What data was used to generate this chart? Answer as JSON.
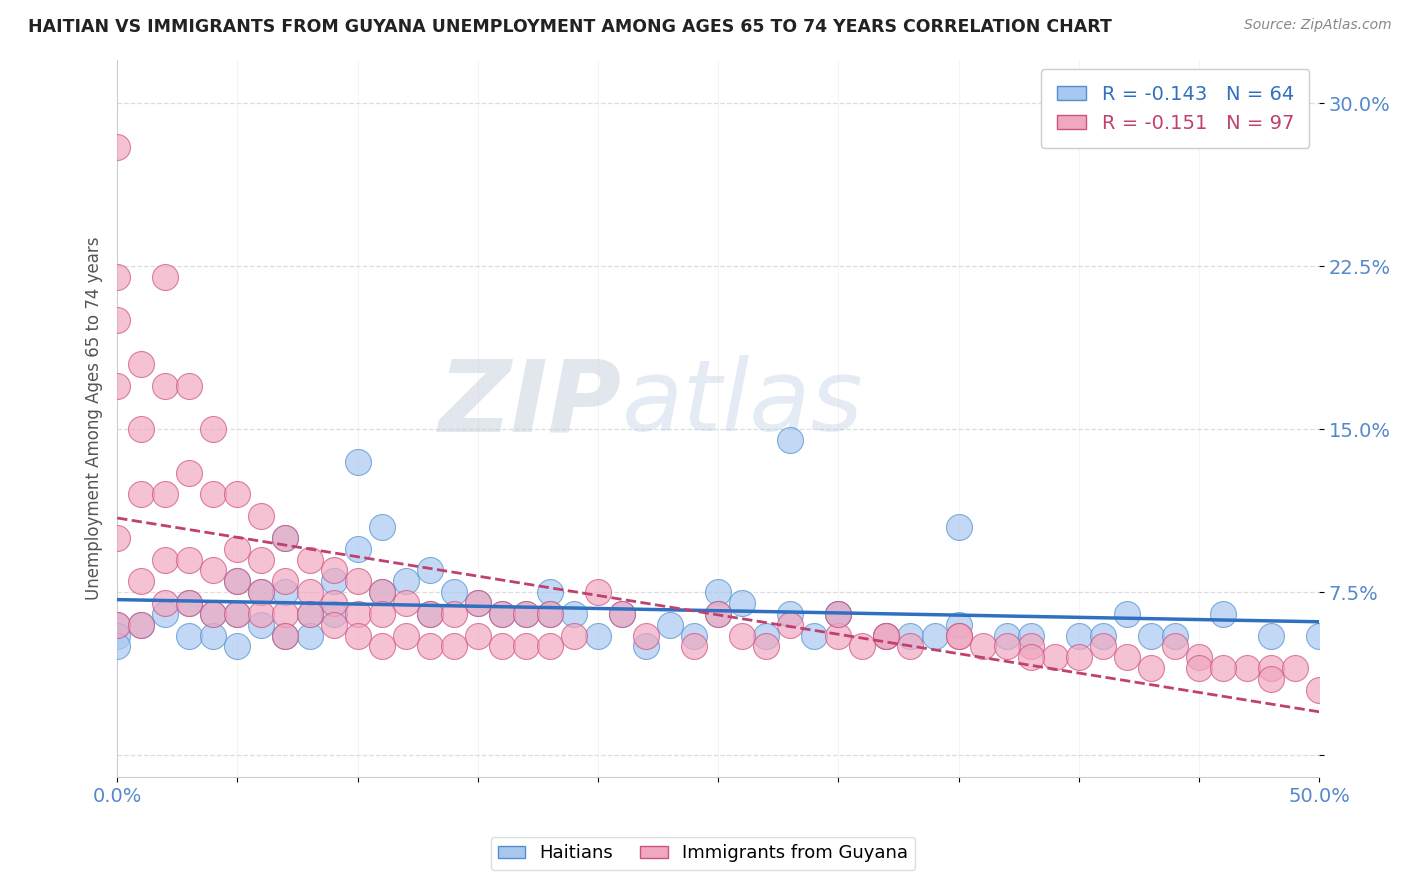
{
  "title": "HAITIAN VS IMMIGRANTS FROM GUYANA UNEMPLOYMENT AMONG AGES 65 TO 74 YEARS CORRELATION CHART",
  "source": "Source: ZipAtlas.com",
  "ylabel": "Unemployment Among Ages 65 to 74 years",
  "xlim": [
    0,
    0.5
  ],
  "ylim": [
    -0.01,
    0.32
  ],
  "yticks": [
    0.0,
    0.075,
    0.15,
    0.225,
    0.3
  ],
  "ytick_labels": [
    "",
    "7.5%",
    "15.0%",
    "22.5%",
    "30.0%"
  ],
  "xtick_labels_show": [
    "0.0%",
    "50.0%"
  ],
  "blue_R": -0.143,
  "blue_N": 64,
  "pink_R": -0.151,
  "pink_N": 97,
  "blue_color": "#A8C8F0",
  "pink_color": "#F0A8C0",
  "blue_edge_color": "#5090D0",
  "pink_edge_color": "#D05080",
  "blue_line_color": "#3070C0",
  "pink_line_color": "#C04070",
  "legend_label_blue": "Haitians",
  "legend_label_pink": "Immigrants from Guyana",
  "watermark_zip": "ZIP",
  "watermark_atlas": "atlas",
  "background_color": "#FFFFFF",
  "grid_color": "#DDDDDD",
  "axis_label_color": "#5588CC",
  "title_color": "#222222",
  "blue_scatter_x": [
    0.0,
    0.0,
    0.0,
    0.01,
    0.02,
    0.03,
    0.03,
    0.04,
    0.04,
    0.05,
    0.05,
    0.05,
    0.06,
    0.06,
    0.07,
    0.07,
    0.07,
    0.08,
    0.08,
    0.09,
    0.09,
    0.1,
    0.1,
    0.11,
    0.11,
    0.12,
    0.13,
    0.13,
    0.14,
    0.15,
    0.16,
    0.17,
    0.18,
    0.18,
    0.19,
    0.2,
    0.21,
    0.22,
    0.23,
    0.24,
    0.25,
    0.25,
    0.26,
    0.27,
    0.28,
    0.29,
    0.3,
    0.32,
    0.33,
    0.34,
    0.35,
    0.37,
    0.38,
    0.4,
    0.41,
    0.43,
    0.44,
    0.46,
    0.48,
    0.5,
    0.28,
    0.3,
    0.35,
    0.42
  ],
  "blue_scatter_y": [
    0.06,
    0.055,
    0.05,
    0.06,
    0.065,
    0.07,
    0.055,
    0.065,
    0.055,
    0.08,
    0.065,
    0.05,
    0.075,
    0.06,
    0.1,
    0.075,
    0.055,
    0.065,
    0.055,
    0.08,
    0.065,
    0.135,
    0.095,
    0.105,
    0.075,
    0.08,
    0.085,
    0.065,
    0.075,
    0.07,
    0.065,
    0.065,
    0.075,
    0.065,
    0.065,
    0.055,
    0.065,
    0.05,
    0.06,
    0.055,
    0.075,
    0.065,
    0.07,
    0.055,
    0.065,
    0.055,
    0.065,
    0.055,
    0.055,
    0.055,
    0.06,
    0.055,
    0.055,
    0.055,
    0.055,
    0.055,
    0.055,
    0.065,
    0.055,
    0.055,
    0.145,
    0.065,
    0.105,
    0.065
  ],
  "pink_scatter_x": [
    0.0,
    0.0,
    0.0,
    0.0,
    0.0,
    0.0,
    0.01,
    0.01,
    0.01,
    0.01,
    0.01,
    0.02,
    0.02,
    0.02,
    0.02,
    0.02,
    0.03,
    0.03,
    0.03,
    0.03,
    0.04,
    0.04,
    0.04,
    0.04,
    0.05,
    0.05,
    0.05,
    0.05,
    0.06,
    0.06,
    0.06,
    0.06,
    0.07,
    0.07,
    0.07,
    0.07,
    0.08,
    0.08,
    0.08,
    0.09,
    0.09,
    0.09,
    0.1,
    0.1,
    0.1,
    0.11,
    0.11,
    0.11,
    0.12,
    0.12,
    0.13,
    0.13,
    0.14,
    0.14,
    0.15,
    0.15,
    0.16,
    0.16,
    0.17,
    0.17,
    0.18,
    0.18,
    0.19,
    0.2,
    0.21,
    0.22,
    0.24,
    0.25,
    0.26,
    0.27,
    0.28,
    0.3,
    0.31,
    0.32,
    0.33,
    0.35,
    0.36,
    0.38,
    0.39,
    0.41,
    0.42,
    0.44,
    0.45,
    0.47,
    0.48,
    0.49,
    0.3,
    0.32,
    0.35,
    0.37,
    0.38,
    0.4,
    0.43,
    0.45,
    0.46,
    0.48,
    0.5
  ],
  "pink_scatter_y": [
    0.28,
    0.22,
    0.2,
    0.17,
    0.1,
    0.06,
    0.18,
    0.15,
    0.12,
    0.08,
    0.06,
    0.22,
    0.17,
    0.12,
    0.09,
    0.07,
    0.17,
    0.13,
    0.09,
    0.07,
    0.15,
    0.12,
    0.085,
    0.065,
    0.12,
    0.095,
    0.08,
    0.065,
    0.11,
    0.09,
    0.075,
    0.065,
    0.1,
    0.08,
    0.065,
    0.055,
    0.09,
    0.075,
    0.065,
    0.085,
    0.07,
    0.06,
    0.08,
    0.065,
    0.055,
    0.075,
    0.065,
    0.05,
    0.07,
    0.055,
    0.065,
    0.05,
    0.065,
    0.05,
    0.07,
    0.055,
    0.065,
    0.05,
    0.065,
    0.05,
    0.065,
    0.05,
    0.055,
    0.075,
    0.065,
    0.055,
    0.05,
    0.065,
    0.055,
    0.05,
    0.06,
    0.055,
    0.05,
    0.055,
    0.05,
    0.055,
    0.05,
    0.05,
    0.045,
    0.05,
    0.045,
    0.05,
    0.045,
    0.04,
    0.04,
    0.04,
    0.065,
    0.055,
    0.055,
    0.05,
    0.045,
    0.045,
    0.04,
    0.04,
    0.04,
    0.035,
    0.03
  ]
}
